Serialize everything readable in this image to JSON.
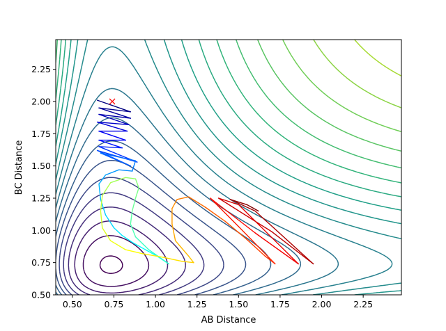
{
  "chart_data": {
    "type": "contour",
    "title": "",
    "xlabel": "AB Distance",
    "ylabel": "BC Distance",
    "xlim": [
      0.4,
      2.48
    ],
    "ylim": [
      0.5,
      2.48
    ],
    "x_ticks": [
      0.5,
      0.75,
      1.0,
      1.25,
      1.5,
      1.75,
      2.0,
      2.25
    ],
    "x_tick_labels": [
      "0.50",
      "0.75",
      "1.00",
      "1.25",
      "1.50",
      "1.75",
      "2.00",
      "2.25"
    ],
    "y_ticks": [
      0.5,
      0.75,
      1.0,
      1.25,
      1.5,
      1.75,
      2.0,
      2.25
    ],
    "y_tick_labels": [
      "0.50",
      "0.75",
      "1.00",
      "1.25",
      "1.50",
      "1.75",
      "2.00",
      "2.25"
    ],
    "grid": false,
    "colormap": "viridis",
    "contour_levels": 24,
    "start_marker": {
      "x": 0.74,
      "y": 2.0,
      "symbol": "x",
      "color": "#ff0000"
    },
    "trajectory": {
      "colormap": "jet",
      "points": [
        [
          0.65,
          2.01
        ],
        [
          0.85,
          1.92
        ],
        [
          0.66,
          1.95
        ],
        [
          0.85,
          1.87
        ],
        [
          0.66,
          1.9
        ],
        [
          0.84,
          1.82
        ],
        [
          0.65,
          1.84
        ],
        [
          0.83,
          1.77
        ],
        [
          0.66,
          1.77
        ],
        [
          0.82,
          1.7
        ],
        [
          0.66,
          1.7
        ],
        [
          0.8,
          1.64
        ],
        [
          0.66,
          1.65
        ],
        [
          0.89,
          1.53
        ],
        [
          0.65,
          1.62
        ],
        [
          0.85,
          1.5
        ],
        [
          0.67,
          1.6
        ],
        [
          0.88,
          1.54
        ],
        [
          0.86,
          1.46
        ],
        [
          0.78,
          1.47
        ],
        [
          0.7,
          1.43
        ],
        [
          0.66,
          1.36
        ],
        [
          0.67,
          1.24
        ],
        [
          0.7,
          1.12
        ],
        [
          0.75,
          1.02
        ],
        [
          0.8,
          0.96
        ],
        [
          0.87,
          0.9
        ],
        [
          0.94,
          0.85
        ],
        [
          1.01,
          0.8
        ],
        [
          1.08,
          0.74
        ],
        [
          0.96,
          0.85
        ],
        [
          0.88,
          0.95
        ],
        [
          0.85,
          1.05
        ],
        [
          0.86,
          1.15
        ],
        [
          0.88,
          1.25
        ],
        [
          0.9,
          1.33
        ],
        [
          0.88,
          1.4
        ],
        [
          0.82,
          1.41
        ],
        [
          0.73,
          1.37
        ],
        [
          0.68,
          1.27
        ],
        [
          0.67,
          1.15
        ],
        [
          0.68,
          1.02
        ],
        [
          0.73,
          0.92
        ],
        [
          0.82,
          0.85
        ],
        [
          0.92,
          0.82
        ],
        [
          1.05,
          0.79
        ],
        [
          1.16,
          0.76
        ],
        [
          1.23,
          0.75
        ],
        [
          1.2,
          0.8
        ],
        [
          1.12,
          0.92
        ],
        [
          1.1,
          1.05
        ],
        [
          1.1,
          1.17
        ],
        [
          1.13,
          1.24
        ],
        [
          1.2,
          1.26
        ],
        [
          1.3,
          1.18
        ],
        [
          1.42,
          1.07
        ],
        [
          1.55,
          0.93
        ],
        [
          1.66,
          0.8
        ],
        [
          1.72,
          0.74
        ],
        [
          1.5,
          1.03
        ],
        [
          1.33,
          1.25
        ],
        [
          1.6,
          0.98
        ],
        [
          1.86,
          0.74
        ],
        [
          1.5,
          1.2
        ],
        [
          1.38,
          1.25
        ],
        [
          1.7,
          0.99
        ],
        [
          1.95,
          0.74
        ],
        [
          1.6,
          1.15
        ],
        [
          1.45,
          1.24
        ],
        [
          1.55,
          1.2
        ],
        [
          1.62,
          1.15
        ]
      ]
    }
  }
}
